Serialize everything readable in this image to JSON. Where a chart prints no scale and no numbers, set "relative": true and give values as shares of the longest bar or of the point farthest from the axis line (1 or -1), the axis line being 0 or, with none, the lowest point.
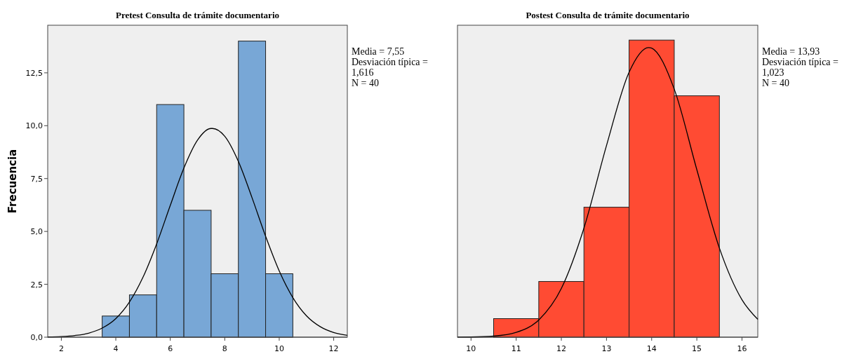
{
  "chart_data": [
    {
      "type": "histogram",
      "title": "Pretest Consulta de trámite documentario",
      "ylabel": "Frecuencia",
      "bins": [
        3.5,
        4.5,
        5.5,
        6.5,
        7.5,
        8.5,
        9.5,
        10.5
      ],
      "values": [
        1,
        2,
        11,
        6,
        3,
        14,
        3
      ],
      "color": "#78a7d6",
      "xlim": [
        1.5,
        12.5
      ],
      "xticks": [
        2,
        4,
        6,
        8,
        10,
        12
      ],
      "ylim": [
        0,
        14.75
      ],
      "yticks": [
        {
          "value": 0,
          "label": "0,0"
        },
        {
          "value": 2.5,
          "label": "2,5"
        },
        {
          "value": 5,
          "label": "5,0"
        },
        {
          "value": 7.5,
          "label": "7,5"
        },
        {
          "value": 10,
          "label": "10,0"
        },
        {
          "value": 12.5,
          "label": "12,5"
        }
      ],
      "series": [
        {
          "type": "line",
          "color": "#000000",
          "x": [
            1.5,
            2,
            2.5,
            3,
            3.5,
            4,
            4.5,
            5,
            5.5,
            6,
            6.5,
            7,
            7.5,
            7.55,
            8,
            8.5,
            9,
            9.5,
            10,
            10.5,
            11,
            11.5,
            12,
            12.5
          ],
          "values": [
            0.01,
            0.03,
            0.08,
            0.19,
            0.43,
            0.88,
            1.66,
            2.84,
            4.41,
            6.23,
            8,
            9.32,
            9.87,
            9.87,
            9.5,
            8.31,
            6.6,
            4.77,
            3.13,
            1.87,
            1.01,
            0.5,
            0.22,
            0.09
          ]
        }
      ],
      "annotations": [
        "Media = 7,55",
        "Desviación típica = 1,616",
        "N = 40"
      ]
    },
    {
      "type": "histogram",
      "title": "Postest Consulta de trámite documentario",
      "relative": true,
      "tick_labels": "x",
      "bins": [
        10.5,
        11.5,
        12.5,
        13.5,
        14.5,
        15.5
      ],
      "values": [
        0.0625,
        0.1875,
        0.4375,
        1,
        0.8125
      ],
      "color": "#ff4b33",
      "xlim": [
        9.7,
        16.35
      ],
      "xticks": [
        10,
        11,
        12,
        13,
        14,
        15,
        16
      ],
      "series": [
        {
          "type": "line",
          "color": "#000000",
          "x": [
            9.7,
            10,
            10.5,
            11,
            11.5,
            12,
            12.5,
            13,
            13.5,
            13.93,
            14,
            14.5,
            15,
            15.5,
            16,
            16.35
          ],
          "values": [
            0.0002,
            0.0006,
            0.0035,
            0.016,
            0.058,
            0.164,
            0.367,
            0.645,
            0.892,
            0.975,
            0.973,
            0.835,
            0.564,
            0.3,
            0.126,
            0.06
          ]
        }
      ],
      "annotations": [
        "Media = 13,93",
        "Desviación típica = 1,023",
        "N = 40"
      ]
    }
  ]
}
